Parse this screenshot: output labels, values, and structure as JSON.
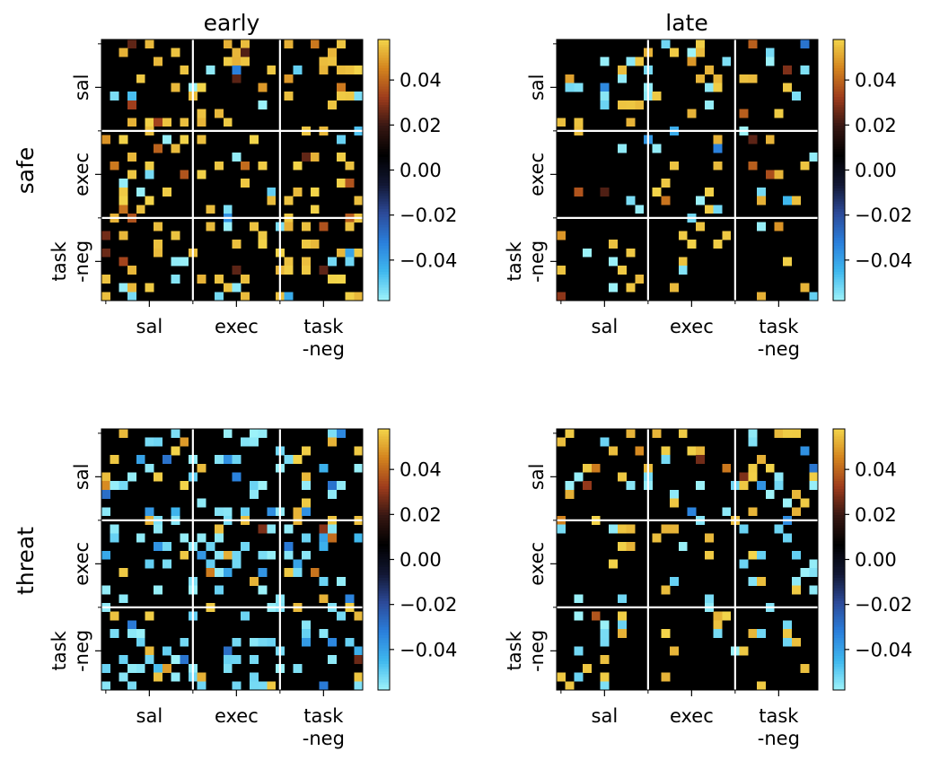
{
  "chart_data": {
    "type": "heatmap",
    "column_titles": [
      "early",
      "late"
    ],
    "row_titles": [
      "safe",
      "threat"
    ],
    "tick_labels": {
      "x": [
        [
          "sal"
        ],
        [
          "exec"
        ],
        [
          "task",
          "-neg"
        ]
      ],
      "y": [
        [
          "sal"
        ],
        [
          "exec"
        ],
        [
          "task",
          "-neg"
        ]
      ]
    },
    "matrix_size": 30,
    "group_boundaries": [
      10.5,
      20.5
    ],
    "colorbar": {
      "vmin": -0.058,
      "vmax": 0.058,
      "ticks": [
        0.04,
        0.02,
        0.0,
        -0.02,
        -0.04
      ],
      "tick_labels": [
        "0.04",
        "0.02",
        "0.00",
        "−0.02",
        "−0.04"
      ],
      "colormap": [
        "#9ef3f9",
        "#3fb8ee",
        "#2a7fdc",
        "#2c4a99",
        "#121733",
        "#000000",
        "#361612",
        "#9e3c1c",
        "#d4841e",
        "#f3d54a"
      ]
    },
    "panels": [
      {
        "row": "safe",
        "col": "early",
        "density": 0.2,
        "positive_share": 0.78,
        "seed": 11
      },
      {
        "row": "safe",
        "col": "late",
        "density": 0.09,
        "positive_share": 0.62,
        "seed": 23
      },
      {
        "row": "threat",
        "col": "early",
        "density": 0.19,
        "positive_share": 0.3,
        "seed": 37
      },
      {
        "row": "threat",
        "col": "late",
        "density": 0.15,
        "positive_share": 0.5,
        "seed": 53
      }
    ]
  }
}
